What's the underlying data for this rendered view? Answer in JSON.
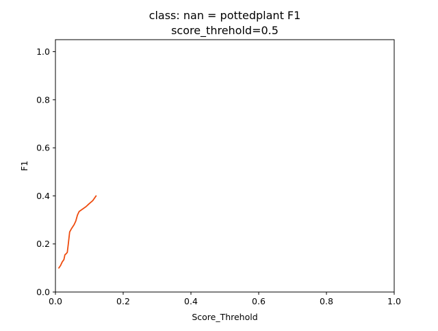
{
  "chart_data": {
    "type": "line",
    "title_line1": "class: nan = pottedplant F1",
    "title_line2": "score_threhold=0.5",
    "xlabel": "Score_Threhold",
    "ylabel": "F1",
    "xlim": [
      0,
      1
    ],
    "ylim": [
      0,
      1.05
    ],
    "xticks": [
      0.0,
      0.2,
      0.4,
      0.6,
      0.8,
      1.0
    ],
    "yticks": [
      0.0,
      0.2,
      0.4,
      0.6,
      0.8,
      1.0
    ],
    "xtick_labels": [
      "0.0",
      "0.2",
      "0.4",
      "0.6",
      "0.8",
      "1.0"
    ],
    "ytick_labels": [
      "0.0",
      "0.2",
      "0.4",
      "0.6",
      "0.8",
      "1.0"
    ],
    "grid": false,
    "series": [
      {
        "name": "F1",
        "color": "#ee4b0e",
        "x": [
          0.01,
          0.015,
          0.02,
          0.025,
          0.028,
          0.032,
          0.035,
          0.038,
          0.042,
          0.048,
          0.055,
          0.06,
          0.065,
          0.07,
          0.08,
          0.09,
          0.1,
          0.11,
          0.12
        ],
        "y": [
          0.1,
          0.11,
          0.125,
          0.135,
          0.155,
          0.16,
          0.165,
          0.2,
          0.25,
          0.265,
          0.28,
          0.295,
          0.32,
          0.335,
          0.345,
          0.355,
          0.368,
          0.38,
          0.4
        ]
      }
    ]
  }
}
